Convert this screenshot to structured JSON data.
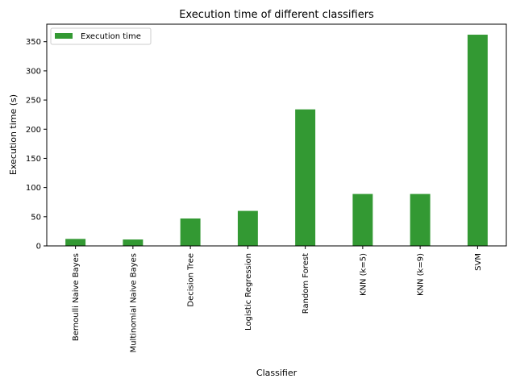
{
  "chart_data": {
    "type": "bar",
    "title": "Execution time of different classifiers",
    "xlabel": "Classifier",
    "ylabel": "Execution time (s)",
    "categories": [
      "Bernoulli Naive Bayes",
      "Multinomial Naive Bayes",
      "Decision Tree",
      "Logistic Regression",
      "Random Forest",
      "KNN (k=5)",
      "KNN (k=9)",
      "SVM"
    ],
    "series": [
      {
        "name": "Execution time",
        "values": [
          12,
          11,
          47,
          60,
          234,
          89,
          89,
          362
        ]
      }
    ],
    "ylim": [
      0,
      380
    ],
    "yticks": [
      0,
      50,
      100,
      150,
      200,
      250,
      300,
      350
    ],
    "grid": false,
    "legend_position": "top-left",
    "bar_color": "#339933"
  }
}
